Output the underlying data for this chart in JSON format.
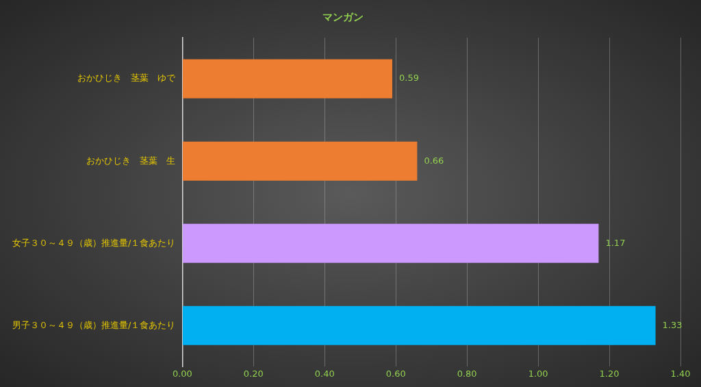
{
  "chart_data": {
    "type": "bar",
    "orientation": "horizontal",
    "title": "マンガン",
    "categories": [
      "おかひじき　茎葉　ゆで",
      "おかひじき　茎葉　生",
      "女子３０～４９（歳）推進量/１食あたり",
      "男子３０～４９（歳）推進量/１食あたり"
    ],
    "values": [
      0.59,
      0.66,
      1.17,
      1.33
    ],
    "colors": [
      "#ed7d31",
      "#ed7d31",
      "#cc99ff",
      "#00b0f0"
    ],
    "xlim": [
      0,
      1.4
    ],
    "xticks": [
      {
        "value": 0,
        "label": "0.00"
      },
      {
        "value": 0.2,
        "label": "0.20"
      },
      {
        "value": 0.4,
        "label": "0.40"
      },
      {
        "value": 0.6,
        "label": "0.60"
      },
      {
        "value": 0.8,
        "label": "0.80"
      },
      {
        "value": 1,
        "label": "1.00"
      },
      {
        "value": 1.2,
        "label": "1.20"
      },
      {
        "value": 1.4,
        "label": "1.40"
      }
    ],
    "grid": "x",
    "legend": false,
    "data_labels": true
  }
}
